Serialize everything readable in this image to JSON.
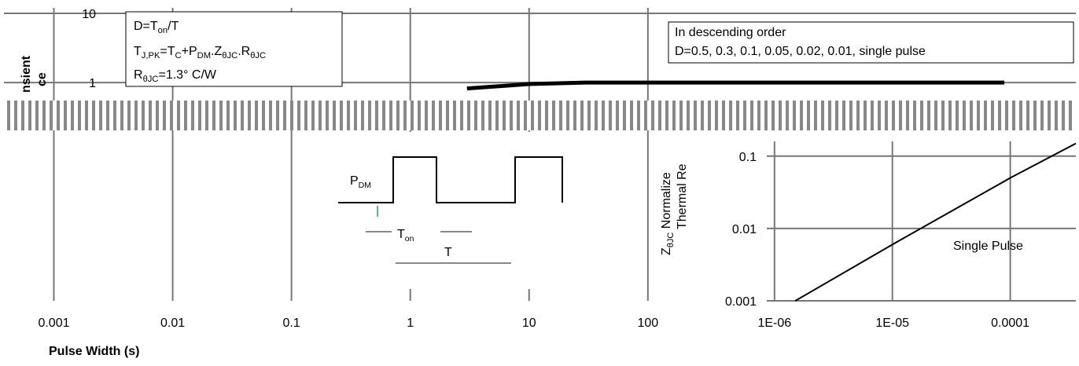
{
  "chart_data": [
    {
      "type": "line",
      "log_x": true,
      "log_y": true,
      "grid": true,
      "color": "#000000",
      "xlim": [
        0.00038,
        400000
      ],
      "ylim": [
        0.0007,
        12
      ],
      "xticks": [
        0.001,
        0.01,
        0.1,
        1,
        10,
        100
      ],
      "yticks": [
        1,
        10
      ],
      "x": [
        3,
        10,
        30,
        100,
        1000,
        100000
      ],
      "values": [
        0.82,
        0.95,
        1,
        1,
        1,
        1
      ],
      "x_label": "Pulse Width (s)",
      "y_label": [
        "nsient",
        "ce"
      ],
      "notes": [
        [
          [
            {
              "t": "D=T"
            },
            {
              "t": "on",
              "sub": true
            },
            {
              "t": "/T"
            }
          ],
          [
            {
              "t": "T"
            },
            {
              "t": "J,PK",
              "sub": true
            },
            {
              "t": "=T"
            },
            {
              "t": "C",
              "sub": true
            },
            {
              "t": "+P"
            },
            {
              "t": "DM",
              "sub": true
            },
            {
              "t": ".Z"
            },
            {
              "t": "θJC",
              "sub": true
            },
            {
              "t": ".R"
            },
            {
              "t": "θJC",
              "sub": true
            }
          ],
          [
            {
              "t": "R"
            },
            {
              "t": "θJC",
              "sub": true
            },
            {
              "t": "=1.3° C/W"
            }
          ]
        ],
        [
          [
            {
              "t": "In descending order"
            }
          ],
          [
            {
              "t": "D=0.5, 0.3, 0.1, 0.05, 0.02, 0.01, single pulse"
            }
          ]
        ]
      ],
      "pulse_labels": [
        [
          {
            "t": "P"
          },
          {
            "t": "DM",
            "sub": true
          }
        ],
        [
          {
            "t": "T"
          },
          {
            "t": "on",
            "sub": true
          }
        ],
        [
          {
            "t": "T"
          }
        ]
      ]
    },
    {
      "type": "line",
      "log_x": true,
      "log_y": true,
      "grid": true,
      "color": "#000000",
      "xlim": [
        8.6e-07,
        0.00036
      ],
      "ylim": [
        0.001,
        0.16
      ],
      "xticks": [
        {
          "value": 1e-06,
          "label": "1E-06"
        },
        {
          "value": 1e-05,
          "label": "1E-05"
        },
        {
          "value": 0.0001,
          "label": "0.0001"
        }
      ],
      "yticks": [
        0.001,
        0.01,
        0.1
      ],
      "x": [
        1.5e-06,
        1e-05,
        0.0001,
        0.00036
      ],
      "values": [
        0.001,
        0.006,
        0.05,
        0.15
      ],
      "y_label": [
        "Z",
        "θJC",
        " Normalize",
        "Thermal Re"
      ],
      "annotation": "Single Pulse"
    }
  ]
}
